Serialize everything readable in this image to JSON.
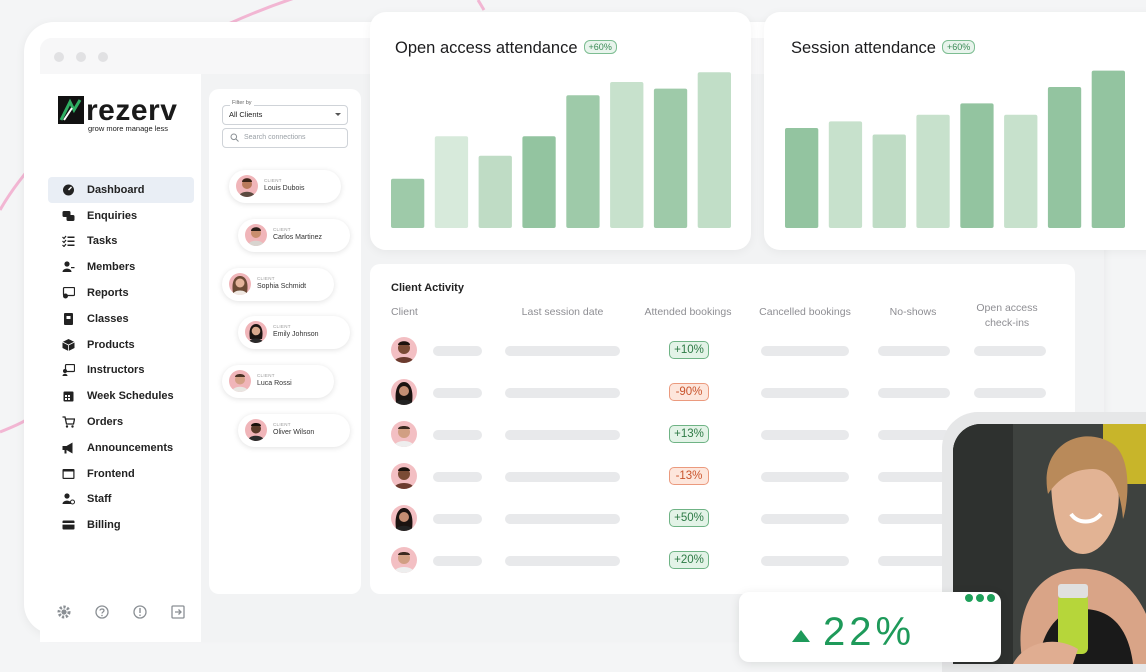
{
  "brand": {
    "name": "rezerv",
    "tagline": "grow more manage less"
  },
  "sidebar": {
    "items": [
      {
        "label": "Dashboard",
        "icon": "dashboard-icon",
        "active": true
      },
      {
        "label": "Enquiries",
        "icon": "chat-icon"
      },
      {
        "label": "Tasks",
        "icon": "checklist-icon"
      },
      {
        "label": "Members",
        "icon": "members-icon"
      },
      {
        "label": "Reports",
        "icon": "reports-icon"
      },
      {
        "label": "Classes",
        "icon": "classes-icon"
      },
      {
        "label": "Products",
        "icon": "box-icon"
      },
      {
        "label": "Instructors",
        "icon": "instructor-icon"
      },
      {
        "label": "Week Schedules",
        "icon": "calendar-icon"
      },
      {
        "label": "Orders",
        "icon": "cart-icon"
      },
      {
        "label": "Announcements",
        "icon": "megaphone-icon"
      },
      {
        "label": "Frontend",
        "icon": "window-icon"
      },
      {
        "label": "Staff",
        "icon": "staff-icon"
      },
      {
        "label": "Billing",
        "icon": "card-icon"
      }
    ],
    "bottom_icons": [
      "gear-icon",
      "help-icon",
      "info-icon",
      "logout-icon"
    ]
  },
  "connections": {
    "filter_label": "Filter by",
    "filter_value": "All Clients",
    "search_placeholder": "Search connections",
    "client_tag": "CLIENT",
    "clients": [
      {
        "name": "Louis Dubois"
      },
      {
        "name": "Carlos Martinez"
      },
      {
        "name": "Sophia Schmidt"
      },
      {
        "name": "Emily Johnson"
      },
      {
        "name": "Luca Rossi"
      },
      {
        "name": "Oliver Wilson"
      }
    ]
  },
  "open_access_card": {
    "title": "Open access attendance",
    "badge": "+60%"
  },
  "session_card": {
    "title": "Session attendance",
    "badge": "+60%"
  },
  "chart_data": [
    {
      "type": "bar",
      "values": [
        30,
        56,
        44,
        56,
        81,
        89,
        85,
        95
      ],
      "colors": [
        "#9ecaa9",
        "#d7eadb",
        "#bfdcc5",
        "#93c4a0",
        "#9ecaa9",
        "#c7e1cc",
        "#9ecaa9",
        "#c1dec7"
      ],
      "ylim": [
        0,
        100
      ]
    },
    {
      "type": "bar",
      "values": [
        61,
        65,
        57,
        69,
        76,
        69,
        86,
        96
      ],
      "colors": [
        "#93c4a0",
        "#c7e1cc",
        "#bfdcc5",
        "#c7e1cc",
        "#93c4a0",
        "#c7e1cc",
        "#93c4a0",
        "#93c4a0"
      ],
      "ylim": [
        0,
        100
      ]
    }
  ],
  "activity": {
    "title": "Client Activity",
    "columns": [
      "Client",
      "Last session date",
      "Attended bookings",
      "Cancelled bookings",
      "No-shows",
      "Open access check-ins"
    ],
    "rows": [
      {
        "attended": "+10%",
        "trend": "up"
      },
      {
        "attended": "-90%",
        "trend": "down"
      },
      {
        "attended": "+13%",
        "trend": "up"
      },
      {
        "attended": "-13%",
        "trend": "down"
      },
      {
        "attended": "+50%",
        "trend": "up"
      },
      {
        "attended": "+20%",
        "trend": "up"
      }
    ]
  },
  "stat": {
    "value": "22%",
    "direction": "up",
    "color": "#1e9a5a"
  }
}
